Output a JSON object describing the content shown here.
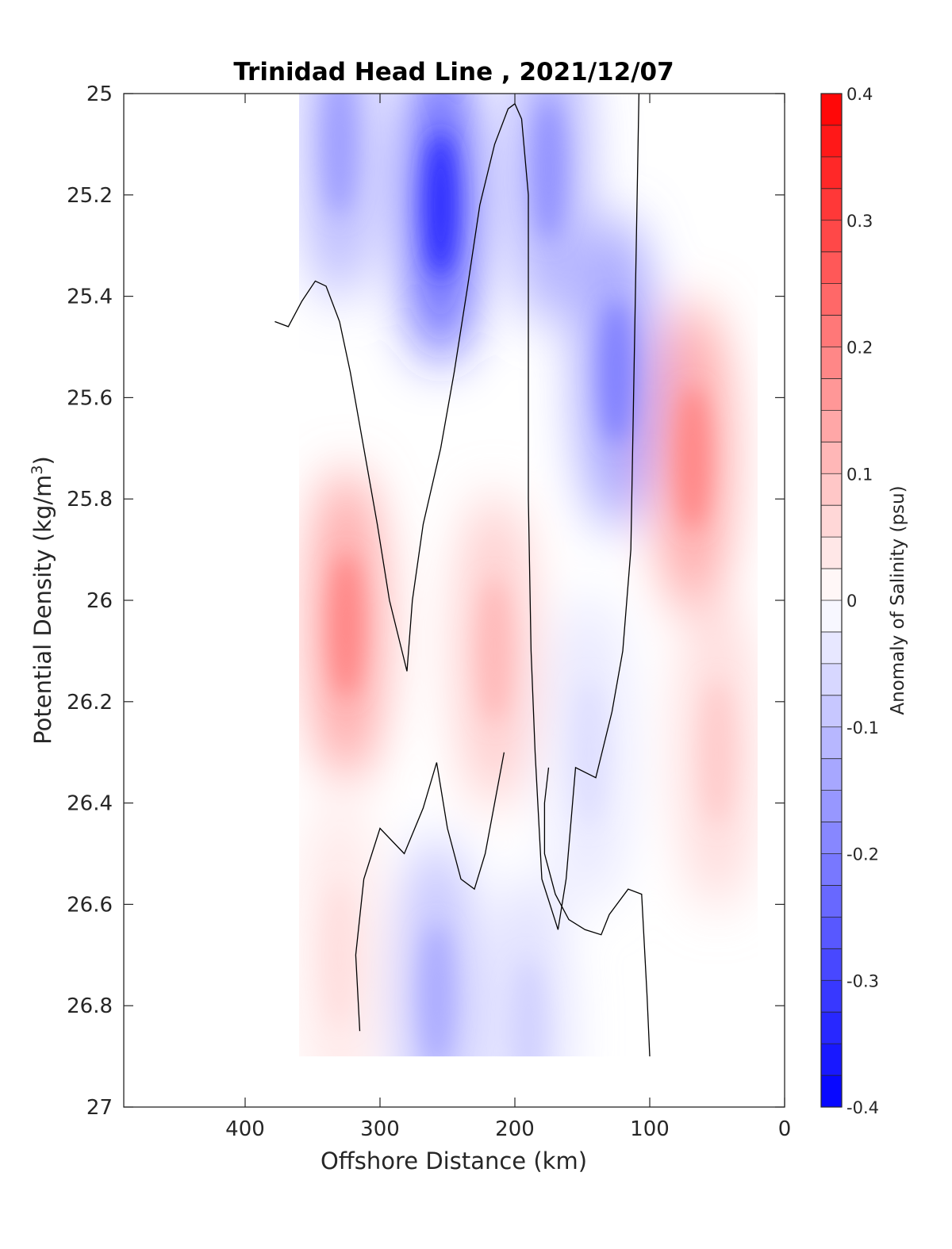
{
  "chart_data": {
    "type": "heatmap",
    "title": "Trinidad Head Line , 2021/12/07",
    "xlabel": "Offshore Distance (km)",
    "ylabel": "Potential Density (kg/m",
    "ylabel_superscript": "3",
    "ylabel_close": ")",
    "colorbar_label": "Anomaly of Salinity (psu)",
    "xlim": [
      490,
      0
    ],
    "ylim": [
      27,
      25
    ],
    "x_reversed": true,
    "y_reversed": true,
    "xticks": [
      400,
      300,
      200,
      100,
      0
    ],
    "xtick_labels": [
      "400",
      "300",
      "200",
      "100",
      "0"
    ],
    "yticks": [
      25,
      25.2,
      25.4,
      25.6,
      25.8,
      26,
      26.2,
      26.4,
      26.6,
      26.8,
      27
    ],
    "ytick_labels": [
      "25",
      "25.2",
      "25.4",
      "25.6",
      "25.8",
      "26",
      "26.2",
      "26.4",
      "26.6",
      "26.8",
      "27"
    ],
    "colorbar": {
      "limits": [
        -0.4,
        0.4
      ],
      "levels": 32,
      "ticks": [
        0.4,
        0.3,
        0.2,
        0.1,
        0,
        -0.1,
        -0.2,
        -0.3,
        -0.4
      ],
      "tick_labels": [
        "0.4",
        "0.3",
        "0.2",
        "0.1",
        "0",
        "-0.1",
        "-0.2",
        "-0.3",
        "-0.4"
      ],
      "colormap": "blue-white-red",
      "low_color": "#0000ff",
      "mid_color": "#ffffff",
      "high_color": "#ff0000"
    },
    "grid": false,
    "contour_level": 0,
    "contour_color": "#000000",
    "field_x_range": [
      360,
      20
    ],
    "field_y_range": [
      25,
      26.9
    ],
    "features": [
      {
        "kind": "negative",
        "x": 255,
        "y": 25.22,
        "value": -0.33
      },
      {
        "kind": "negative",
        "x": 125,
        "y": 25.55,
        "value": -0.2
      },
      {
        "kind": "negative",
        "x": 175,
        "y": 25.15,
        "value": -0.17
      },
      {
        "kind": "negative",
        "x": 330,
        "y": 25.1,
        "value": -0.15
      },
      {
        "kind": "negative",
        "x": 258,
        "y": 26.78,
        "value": -0.13
      },
      {
        "kind": "negative",
        "x": 190,
        "y": 26.85,
        "value": -0.07
      },
      {
        "kind": "negative",
        "x": 145,
        "y": 26.3,
        "value": -0.05
      },
      {
        "kind": "positive",
        "x": 325,
        "y": 26.05,
        "value": 0.19
      },
      {
        "kind": "positive",
        "x": 68,
        "y": 25.72,
        "value": 0.19
      },
      {
        "kind": "positive",
        "x": 215,
        "y": 26.1,
        "value": 0.11
      },
      {
        "kind": "positive",
        "x": 50,
        "y": 26.3,
        "value": 0.08
      },
      {
        "kind": "positive",
        "x": 330,
        "y": 26.7,
        "value": 0.05
      }
    ],
    "zero_contours": [
      [
        [
          378,
          25.45
        ],
        [
          368,
          25.46
        ],
        [
          358,
          25.41
        ],
        [
          348,
          25.37
        ],
        [
          340,
          25.38
        ],
        [
          330,
          25.45
        ],
        [
          322,
          25.55
        ],
        [
          312,
          25.7
        ],
        [
          302,
          25.85
        ],
        [
          293,
          26.0
        ],
        [
          280,
          26.14
        ],
        [
          276,
          26.0
        ],
        [
          268,
          25.85
        ],
        [
          255,
          25.7
        ],
        [
          245,
          25.55
        ],
        [
          235,
          25.38
        ],
        [
          226,
          25.22
        ],
        [
          215,
          25.1
        ],
        [
          205,
          25.03
        ],
        [
          200,
          25.02
        ],
        [
          195,
          25.05
        ],
        [
          190,
          25.2
        ],
        [
          190,
          25.5
        ],
        [
          190,
          25.8
        ],
        [
          188,
          26.1
        ],
        [
          185,
          26.3
        ],
        [
          180,
          26.55
        ],
        [
          168,
          26.65
        ],
        [
          162,
          26.55
        ],
        [
          155,
          26.33
        ],
        [
          140,
          26.35
        ],
        [
          128,
          26.22
        ],
        [
          120,
          26.1
        ],
        [
          114,
          25.9
        ],
        [
          112,
          25.6
        ],
        [
          110,
          25.3
        ],
        [
          108,
          25.0
        ]
      ],
      [
        [
          315,
          26.85
        ],
        [
          318,
          26.7
        ],
        [
          312,
          26.55
        ],
        [
          300,
          26.45
        ],
        [
          282,
          26.5
        ],
        [
          268,
          26.41
        ],
        [
          258,
          26.32
        ],
        [
          250,
          26.45
        ],
        [
          240,
          26.55
        ],
        [
          230,
          26.57
        ],
        [
          222,
          26.5
        ],
        [
          215,
          26.4
        ],
        [
          208,
          26.3
        ]
      ],
      [
        [
          175,
          26.33
        ],
        [
          178,
          26.4
        ],
        [
          178,
          26.5
        ],
        [
          170,
          26.58
        ],
        [
          160,
          26.63
        ],
        [
          148,
          26.65
        ],
        [
          136,
          26.66
        ],
        [
          130,
          26.62
        ],
        [
          116,
          26.57
        ],
        [
          106,
          26.58
        ],
        [
          102,
          26.78
        ],
        [
          100,
          26.9
        ]
      ]
    ]
  }
}
